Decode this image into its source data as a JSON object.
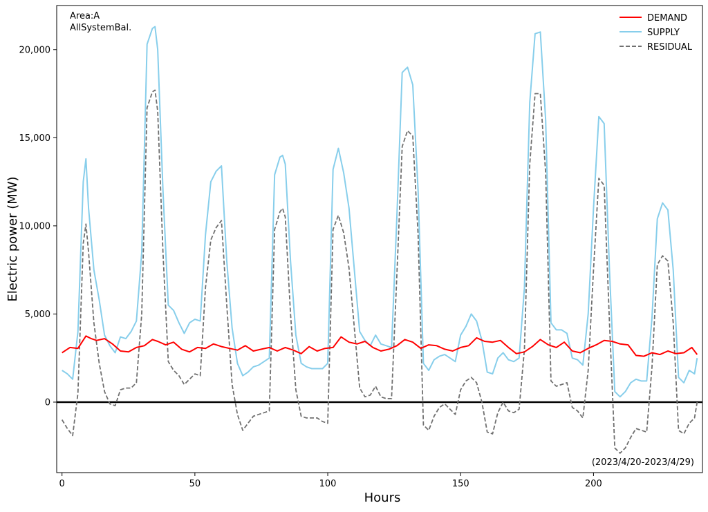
{
  "chart_data": {
    "type": "line",
    "title": "",
    "xlabel": "Hours",
    "ylabel": "Electric power (MW)",
    "xlim": [
      -2,
      241
    ],
    "ylim": [
      -4000,
      22500
    ],
    "xticks": [
      0,
      50,
      100,
      150,
      200
    ],
    "xtick_labels": [
      "0",
      "50",
      "100",
      "150",
      "200"
    ],
    "yticks": [
      0,
      5000,
      10000,
      15000,
      20000
    ],
    "ytick_labels": [
      "0",
      "5,000",
      "10,000",
      "15,000",
      "20,000"
    ],
    "grid": false,
    "legend_position": "top-right",
    "zero_line": true,
    "annotations": {
      "area": "Area:A",
      "system": "AllSystemBal.",
      "period": "(2023/4/20-2023/4/29)"
    },
    "colors": {
      "demand": "#ff0000",
      "supply": "#87ceeb",
      "residual": "#707070",
      "zero": "#000000"
    },
    "series": [
      {
        "name": "DEMAND",
        "style": "solid",
        "x": [
          0,
          3,
          6,
          9,
          11,
          13,
          16,
          19,
          22,
          25,
          28,
          31,
          34,
          36,
          39,
          42,
          45,
          48,
          51,
          54,
          57,
          60,
          63,
          66,
          69,
          72,
          75,
          78,
          81,
          84,
          87,
          90,
          93,
          96,
          99,
          102,
          105,
          108,
          111,
          114,
          117,
          120,
          123,
          126,
          129,
          132,
          135,
          138,
          141,
          144,
          147,
          150,
          153,
          156,
          159,
          162,
          165,
          168,
          171,
          174,
          177,
          180,
          183,
          186,
          189,
          192,
          195,
          198,
          201,
          204,
          207,
          210,
          213,
          216,
          219,
          222,
          225,
          228,
          231,
          234,
          237,
          239
        ],
        "values": [
          2800,
          3100,
          3050,
          3750,
          3600,
          3500,
          3600,
          3300,
          2900,
          2850,
          3100,
          3200,
          3550,
          3450,
          3250,
          3400,
          3000,
          2850,
          3100,
          3050,
          3300,
          3150,
          3050,
          2950,
          3200,
          2900,
          3000,
          3100,
          2900,
          3100,
          2950,
          2750,
          3150,
          2900,
          3050,
          3100,
          3700,
          3400,
          3300,
          3450,
          3100,
          2900,
          3000,
          3200,
          3550,
          3400,
          3050,
          3250,
          3200,
          3000,
          2900,
          3100,
          3200,
          3650,
          3450,
          3400,
          3500,
          3100,
          2750,
          2850,
          3150,
          3550,
          3250,
          3100,
          3400,
          2900,
          2800,
          3050,
          3250,
          3500,
          3450,
          3300,
          3250,
          2650,
          2600,
          2800,
          2700,
          2900,
          2750,
          2800,
          3100,
          2700
        ]
      },
      {
        "name": "SUPPLY",
        "style": "solid",
        "x": [
          0,
          2,
          4,
          6,
          8,
          9,
          10,
          12,
          14,
          16,
          18,
          20,
          22,
          24,
          26,
          28,
          30,
          32,
          34,
          35,
          36,
          38,
          40,
          42,
          44,
          46,
          48,
          50,
          52,
          54,
          56,
          58,
          60,
          62,
          64,
          66,
          68,
          70,
          72,
          74,
          76,
          78,
          80,
          82,
          83,
          84,
          86,
          88,
          90,
          92,
          94,
          96,
          98,
          100,
          102,
          104,
          106,
          108,
          110,
          112,
          114,
          116,
          118,
          120,
          122,
          124,
          126,
          128,
          130,
          132,
          134,
          136,
          138,
          140,
          142,
          144,
          146,
          148,
          150,
          152,
          154,
          156,
          158,
          160,
          162,
          164,
          166,
          168,
          170,
          172,
          174,
          176,
          178,
          180,
          182,
          184,
          186,
          188,
          190,
          192,
          194,
          196,
          198,
          200,
          202,
          204,
          206,
          208,
          210,
          212,
          214,
          216,
          218,
          220,
          222,
          224,
          226,
          228,
          230,
          232,
          234,
          236,
          238,
          239
        ],
        "values": [
          1800,
          1600,
          1300,
          4000,
          12500,
          13800,
          11000,
          7500,
          5800,
          3800,
          3200,
          2800,
          3700,
          3600,
          4000,
          4600,
          8500,
          20300,
          21200,
          21300,
          20000,
          12000,
          5500,
          5200,
          4500,
          3900,
          4500,
          4700,
          4600,
          9500,
          12500,
          13100,
          13400,
          8000,
          4200,
          2200,
          1500,
          1700,
          2000,
          2100,
          2300,
          2500,
          12900,
          13900,
          14000,
          13500,
          8000,
          3800,
          2200,
          2000,
          1900,
          1900,
          1900,
          2200,
          13200,
          14400,
          13000,
          11000,
          7500,
          4000,
          3500,
          3200,
          3800,
          3300,
          3200,
          3100,
          10500,
          18700,
          19000,
          18000,
          12000,
          2200,
          1800,
          2400,
          2600,
          2700,
          2500,
          2300,
          3800,
          4300,
          5000,
          4600,
          3500,
          1700,
          1600,
          2500,
          2800,
          2400,
          2300,
          2500,
          6500,
          17000,
          20900,
          21000,
          16000,
          4500,
          4100,
          4100,
          3900,
          2500,
          2400,
          2100,
          5000,
          11000,
          16200,
          15800,
          7500,
          600,
          300,
          600,
          1100,
          1300,
          1200,
          1200,
          4800,
          10400,
          11300,
          10900,
          7500,
          1400,
          1100,
          1800,
          1600,
          2500
        ]
      },
      {
        "name": "RESIDUAL",
        "style": "dashed",
        "x": [
          0,
          2,
          4,
          6,
          8,
          9,
          10,
          12,
          14,
          16,
          18,
          20,
          22,
          24,
          26,
          28,
          30,
          32,
          34,
          35,
          36,
          38,
          40,
          42,
          44,
          46,
          48,
          50,
          52,
          54,
          56,
          58,
          60,
          62,
          64,
          66,
          68,
          70,
          72,
          74,
          76,
          78,
          80,
          82,
          83,
          84,
          86,
          88,
          90,
          92,
          94,
          96,
          98,
          100,
          102,
          104,
          106,
          108,
          110,
          112,
          114,
          116,
          118,
          120,
          122,
          124,
          126,
          128,
          130,
          132,
          134,
          136,
          138,
          140,
          142,
          144,
          146,
          148,
          150,
          152,
          154,
          156,
          158,
          160,
          162,
          164,
          166,
          168,
          170,
          172,
          174,
          176,
          178,
          180,
          182,
          184,
          186,
          188,
          190,
          192,
          194,
          196,
          198,
          200,
          202,
          204,
          206,
          208,
          210,
          212,
          214,
          216,
          218,
          220,
          222,
          224,
          226,
          228,
          230,
          232,
          234,
          236,
          238,
          239
        ],
        "values": [
          -1000,
          -1500,
          -1900,
          500,
          9000,
          10100,
          8500,
          4500,
          2200,
          600,
          -100,
          -200,
          700,
          800,
          800,
          1100,
          5000,
          16700,
          17600,
          17700,
          16500,
          8500,
          2300,
          1800,
          1500,
          1000,
          1300,
          1600,
          1500,
          6500,
          9200,
          9900,
          10300,
          5500,
          1000,
          -700,
          -1600,
          -1200,
          -800,
          -700,
          -600,
          -500,
          9800,
          10800,
          11000,
          10500,
          5000,
          700,
          -800,
          -900,
          -900,
          -900,
          -1100,
          -1200,
          9800,
          10600,
          9600,
          7600,
          4200,
          800,
          300,
          400,
          900,
          300,
          200,
          200,
          7200,
          14500,
          15400,
          15100,
          9500,
          -1300,
          -1600,
          -800,
          -300,
          -100,
          -400,
          -700,
          700,
          1200,
          1400,
          1100,
          0,
          -1700,
          -1800,
          -600,
          0,
          -500,
          -600,
          -400,
          3000,
          13500,
          17500,
          17500,
          13000,
          1200,
          900,
          1000,
          1100,
          -300,
          -500,
          -900,
          1800,
          7500,
          12700,
          12300,
          4500,
          -2600,
          -2900,
          -2600,
          -2000,
          -1500,
          -1600,
          -1700,
          2000,
          7800,
          8300,
          8000,
          4500,
          -1600,
          -1800,
          -1200,
          -900,
          0
        ]
      }
    ]
  }
}
